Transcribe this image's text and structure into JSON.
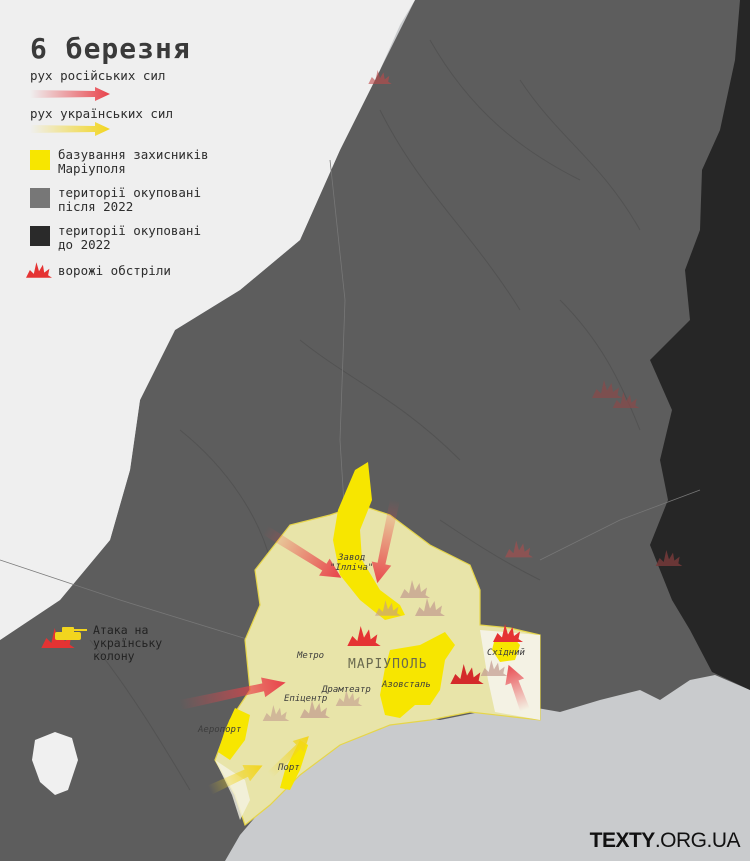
{
  "map": {
    "title": "6 березня",
    "city": "МАРІУПОЛЬ",
    "logo_bold": "TEXTY",
    "logo_rest": ".ORG.UA",
    "legend": {
      "russian_movement": "рух російських сил",
      "ukrainian_movement": "рух українських сил",
      "defenders": "базування захисників\nМаріуполя",
      "occupied_after_2022": "території окуповані\nпісля 2022",
      "occupied_before_2022": "території окуповані\nдо 2022",
      "shelling": "ворожі обстріли"
    },
    "places": {
      "zavod": "Завод\n\"Ілліча\"",
      "metro": "Метро",
      "dramteatr": "Драмтеатр",
      "epicentr": "Епіцентр",
      "azovstal": "Азовсталь",
      "skhidnyi": "Східний",
      "airport": "Аеропорт",
      "port": "Порт"
    },
    "attack_label": "Атака на\nукраїнську\nколону",
    "colors": {
      "sea": "#c9cbcd",
      "free_land": "#efefef",
      "occupied_after": "#5c5c5c",
      "occupied_before": "#2a2a2a",
      "defenders": "#f7e600",
      "russian_arrow": "#e8424a",
      "ukrainian_arrow": "#f2d51e",
      "shelling": "#e53333"
    }
  }
}
